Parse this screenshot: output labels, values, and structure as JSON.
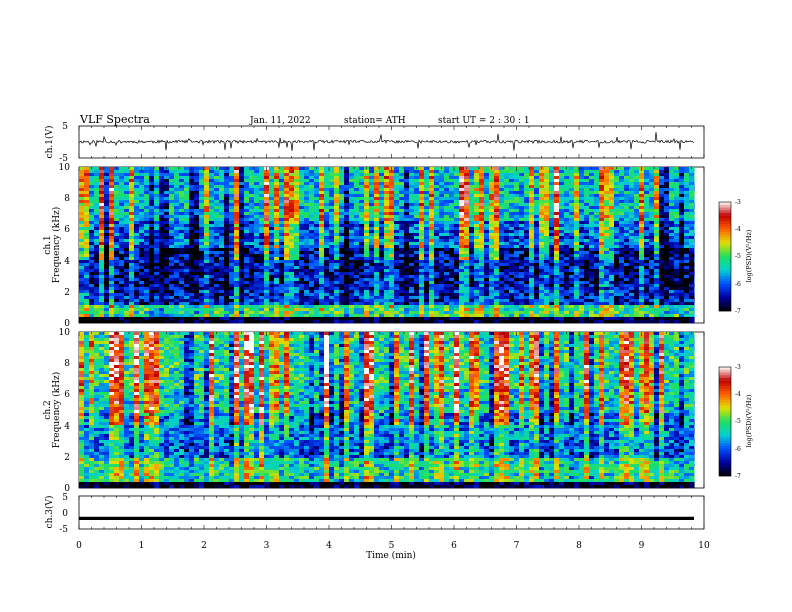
{
  "header": {
    "title": "VLF  Spectra",
    "date": "Jan.  11,  2022",
    "station": "station= ATH",
    "start": "start  UT  =    2  : 30 : 1"
  },
  "chart_data": [
    {
      "type": "line",
      "panel": "ch1-waveform",
      "ylabel": "ch.1(V)",
      "ylim": [
        -5,
        5
      ],
      "yticks": [
        "5",
        "-5"
      ],
      "xlim": [
        0,
        10
      ],
      "x_end": 9.85,
      "baseline": 0.1,
      "color": "#000000"
    },
    {
      "type": "heatmap",
      "panel": "ch1-spectrogram",
      "ylabel": [
        "ch.1",
        "Frequency  (kHz)"
      ],
      "ylim": [
        0,
        10
      ],
      "yticks": [
        "0",
        "2",
        "4",
        "6",
        "8",
        "10"
      ],
      "xlim": [
        0,
        10
      ],
      "x_end": 9.85,
      "colorbar": {
        "label": "log(PSD)(V²/Hz)",
        "range": [
          -7,
          -3
        ],
        "ticks": [
          "-3",
          "-4",
          "-5",
          "-6",
          "-7"
        ]
      },
      "bands_khz": [
        {
          "from": 0.0,
          "to": 0.3,
          "level": -7.0
        },
        {
          "from": 0.3,
          "to": 1.1,
          "level": -5.2
        },
        {
          "from": 1.1,
          "to": 2.2,
          "level": -6.3
        },
        {
          "from": 2.2,
          "to": 4.8,
          "level": -6.5
        },
        {
          "from": 4.8,
          "to": 6.5,
          "level": -6.0
        },
        {
          "from": 6.5,
          "to": 10.0,
          "level": -5.5
        }
      ]
    },
    {
      "type": "heatmap",
      "panel": "ch2-spectrogram",
      "ylabel": [
        "ch.2",
        "Frequency  (kHz)"
      ],
      "ylim": [
        0,
        10
      ],
      "yticks": [
        "0",
        "2",
        "4",
        "6",
        "8",
        "10"
      ],
      "xlim": [
        0,
        10
      ],
      "x_end": 9.85,
      "colorbar": {
        "label": "log(PSD)(V²/Hz)",
        "range": [
          -7,
          -3
        ],
        "ticks": [
          "-3",
          "-4",
          "-5",
          "-6",
          "-7"
        ]
      },
      "bands_khz": [
        {
          "from": 0.0,
          "to": 0.3,
          "level": -7.0
        },
        {
          "from": 0.3,
          "to": 2.0,
          "level": -5.3
        },
        {
          "from": 2.0,
          "to": 3.0,
          "level": -6.0
        },
        {
          "from": 3.0,
          "to": 4.8,
          "level": -5.8
        },
        {
          "from": 4.8,
          "to": 6.5,
          "level": -5.4
        },
        {
          "from": 6.5,
          "to": 10.0,
          "level": -5.2
        }
      ]
    },
    {
      "type": "line",
      "panel": "ch3-waveform",
      "ylabel": "ch.3(V)",
      "ylim": [
        -5,
        5
      ],
      "yticks": [
        "5",
        "0",
        "-5"
      ],
      "xlim": [
        0,
        10
      ],
      "x_end": 9.85,
      "baseline": -1.8,
      "color": "#000000"
    }
  ],
  "xaxis": {
    "label": "Time  (min)",
    "ticks": [
      "0",
      "1",
      "2",
      "3",
      "4",
      "5",
      "6",
      "7",
      "8",
      "9",
      "10"
    ]
  },
  "colormap": {
    "stops": [
      "#000000",
      "#0000a0",
      "#0050ff",
      "#00d0d0",
      "#20e060",
      "#e0e000",
      "#ff6000",
      "#c00000",
      "#ffffff"
    ]
  }
}
